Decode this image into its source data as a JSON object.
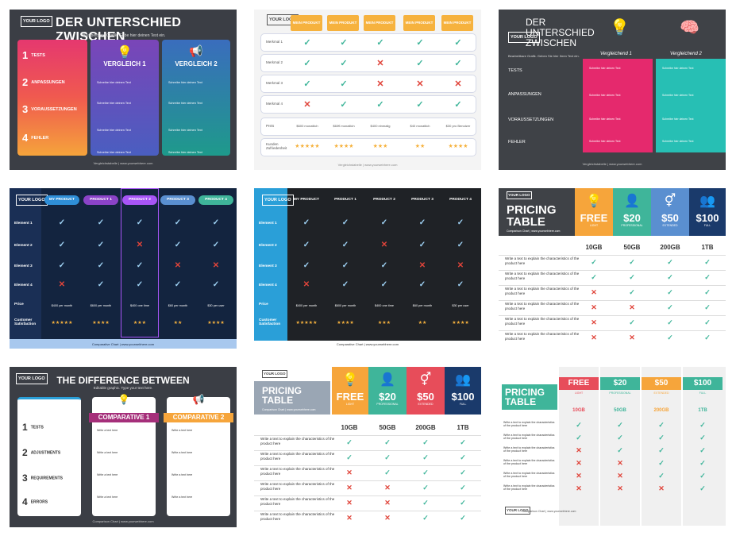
{
  "t1": {
    "logo": "YOUR LOGO",
    "title": "DER UNTERSCHIED ZWISCHEN",
    "sub": "Bearbeitbare Grafik. Gebe hier deinen Text ein.",
    "rows": [
      {
        "n": "1",
        "t": "TESTS"
      },
      {
        "n": "2",
        "t": "ANPASSUNGEN"
      },
      {
        "n": "3",
        "t": "VORAUSSETZUNGEN"
      },
      {
        "n": "4",
        "t": "FEHLER"
      }
    ],
    "c1": "VERGLEICH 1",
    "c2": "VERGLEICH 2",
    "cell": "Schreibe hier deinen Text",
    "foot": "Vergleichstabelle | www.yourwebhere.com"
  },
  "t2": {
    "logo": "YOUR LOGO",
    "heads": [
      "MEIN PRODUKT",
      "MEIN PRODUKT",
      "MEIN PRODUKT",
      "MEIN PRODUKT",
      "MEIN PRODUKT"
    ],
    "rows": [
      {
        "l": "Merkmal 1",
        "v": [
          "c",
          "c",
          "c",
          "c",
          "c"
        ]
      },
      {
        "l": "Merkmal 2",
        "v": [
          "c",
          "c",
          "x",
          "c",
          "c"
        ]
      },
      {
        "l": "Merkmal 3",
        "v": [
          "c",
          "c",
          "x",
          "x",
          "x"
        ]
      },
      {
        "l": "Merkmal 4",
        "v": [
          "x",
          "c",
          "c",
          "c",
          "c"
        ]
      }
    ],
    "price_l": "Preis",
    "prices": [
      "$600 monatlich",
      "$60€ monatlich",
      "$400 einmalig",
      "$40 monatlich",
      "$30 pro Benutzer"
    ],
    "sat_l": "Kunden Zufriedenheit",
    "stars": [
      "★★★★★",
      "★★★★",
      "★★★",
      "★★",
      "★★★★"
    ],
    "foot": "Vergleichstabelle | www.yourwebhere.com"
  },
  "t3": {
    "title": "DER UNTERSCHIED ZWISCHEN",
    "logo": "YOUR LOGO",
    "sub": "Bearbeitbare Grafik. Geben Sie hier Ihren Text ein.",
    "labels": [
      "TESTS",
      "ANPASSUNGEN",
      "VORAUSSETZUNGEN",
      "FEHLER"
    ],
    "c1": "Vergleichend 1",
    "c2": "Vergleichend 2",
    "cell": "Schreibe hier deinen Text",
    "foot": "Vergleichstabelle | www.yourwebhere.com"
  },
  "t4": {
    "logo": "YOUR LOGO",
    "heads": [
      "MY PRODUCT",
      "PRODUCT 1",
      "PRODUCT 2",
      "PRODUCT 3",
      "PRODUCT 4"
    ],
    "labels": [
      "Element 1",
      "Element 2",
      "Element 3",
      "Element 4",
      "Price",
      "Customer Satisfaction"
    ],
    "rows": [
      [
        "c",
        "c",
        "c",
        "c",
        "c"
      ],
      [
        "c",
        "c",
        "x",
        "c",
        "c"
      ],
      [
        "c",
        "c",
        "c",
        "x",
        "x"
      ],
      [
        "x",
        "c",
        "c",
        "c",
        "c"
      ]
    ],
    "prices": [
      "$400 per month",
      "$600 per month",
      "$400 one time",
      "$60 per month",
      "$30 per user"
    ],
    "stars": [
      "★★★★★",
      "★★★★",
      "★★★",
      "★★",
      "★★★★"
    ],
    "foot": "Comparative Chart | www.yourwebhere.com"
  },
  "t5": {
    "logo": "YOUR LOGO",
    "heads": [
      "MY PRODUCT",
      "PRODUCT 1",
      "PRODUCT 2",
      "PRODUCT 3",
      "PRODUCT 4"
    ],
    "labels": [
      "Element 1",
      "Element 2",
      "Element 3",
      "Element 4",
      "Price",
      "Customer Satisfaction"
    ],
    "rows": [
      [
        "c",
        "c",
        "c",
        "c",
        "c"
      ],
      [
        "c",
        "c",
        "x",
        "c",
        "c"
      ],
      [
        "c",
        "c",
        "c",
        "x",
        "x"
      ],
      [
        "x",
        "c",
        "c",
        "c",
        "c"
      ]
    ],
    "prices": [
      "$400 per month",
      "$600 per month",
      "$400 one time",
      "$60 per month",
      "$30 per user"
    ],
    "stars": [
      "★★★★★",
      "★★★★",
      "★★★",
      "★★",
      "★★★★"
    ],
    "foot": "Comparative Chart | www.yourwebhere.com"
  },
  "t6": {
    "logo": "YOUR LOGO",
    "title1": "PRICING",
    "title2": "TABLE",
    "sub": "Comparison Chart | www.yourwebhere.com",
    "plans": [
      {
        "price": "FREE",
        "name": "LIGHT",
        "size": "10GB"
      },
      {
        "price": "$20",
        "name": "PROFESSIONAL",
        "size": "50GB"
      },
      {
        "price": "$50",
        "name": "EXTENDED",
        "size": "200GB"
      },
      {
        "price": "$100",
        "name": "FULL",
        "size": "1TB"
      }
    ],
    "rowtxt": "Write a text to explain the characteristics of the product here",
    "rows": [
      [
        "c",
        "c",
        "c",
        "c"
      ],
      [
        "c",
        "c",
        "c",
        "c"
      ],
      [
        "x",
        "c",
        "c",
        "c"
      ],
      [
        "x",
        "x",
        "c",
        "c"
      ],
      [
        "x",
        "c",
        "c",
        "c"
      ],
      [
        "x",
        "x",
        "c",
        "c"
      ]
    ]
  },
  "t7": {
    "logo": "YOUR LOGO",
    "title": "THE DIFFERENCE BETWEEN",
    "sub": "Editable graphic. Type your text here.",
    "rows": [
      {
        "n": "1",
        "t": "TESTS"
      },
      {
        "n": "2",
        "t": "ADJUSTMENTS"
      },
      {
        "n": "3",
        "t": "REQUIREMENTS"
      },
      {
        "n": "4",
        "t": "ERRORS"
      }
    ],
    "c1": "COMPARATIVE 1",
    "c2": "COMPARATIVE 2",
    "cell": "Write a text here",
    "foot": "Comparison Chart | www.yourwebhere.com"
  },
  "t8": {
    "logo": "YOUR LOGO",
    "title1": "PRICING",
    "title2": "TABLE",
    "sub": "Comparison Chart | www.yourwebhere.com",
    "plans": [
      {
        "price": "FREE",
        "name": "LIGHT",
        "size": "10GB"
      },
      {
        "price": "$20",
        "name": "PROFESSIONAL",
        "size": "50GB"
      },
      {
        "price": "$50",
        "name": "EXTENDED",
        "size": "200GB"
      },
      {
        "price": "$100",
        "name": "FULL",
        "size": "1TB"
      }
    ],
    "rowtxt": "Write a text to explain the characteristics of the product here",
    "rows": [
      [
        "c",
        "c",
        "c",
        "c"
      ],
      [
        "c",
        "c",
        "c",
        "c"
      ],
      [
        "x",
        "c",
        "c",
        "c"
      ],
      [
        "x",
        "x",
        "c",
        "c"
      ],
      [
        "x",
        "x",
        "c",
        "c"
      ],
      [
        "x",
        "x",
        "c",
        "c"
      ]
    ]
  },
  "t9": {
    "title1": "PRICING",
    "title2": "TABLE",
    "logo": "YOUR LOGO",
    "foot": "Comparison Chart | www.yourwebhere.com",
    "plans": [
      {
        "price": "FREE",
        "name": "LIGHT",
        "size": "10GB"
      },
      {
        "price": "$20",
        "name": "PROFESSIONAL",
        "size": "50GB"
      },
      {
        "price": "$50",
        "name": "EXTENDED",
        "size": "200GB"
      },
      {
        "price": "$100",
        "name": "FULL",
        "size": "1TB"
      }
    ],
    "rowtxt": "Write a text to explain the characteristics of the product here",
    "rows": [
      [
        "c",
        "c",
        "c",
        "c"
      ],
      [
        "c",
        "c",
        "c",
        "c"
      ],
      [
        "x",
        "c",
        "c",
        "c"
      ],
      [
        "x",
        "x",
        "c",
        "c"
      ],
      [
        "x",
        "x",
        "c",
        "c"
      ],
      [
        "x",
        "x",
        "x",
        "c"
      ]
    ]
  }
}
